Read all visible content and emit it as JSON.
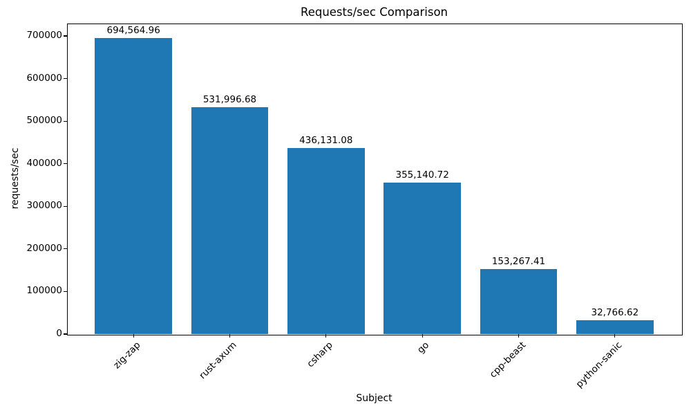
{
  "chart_data": {
    "type": "bar",
    "title": "Requests/sec Comparison",
    "xlabel": "Subject",
    "ylabel": "requests/sec",
    "categories": [
      "zig-zap",
      "rust-axum",
      "csharp",
      "go",
      "cpp-beast",
      "python-sanic"
    ],
    "values": [
      694564.96,
      531996.68,
      436131.08,
      355140.72,
      153267.41,
      32766.62
    ],
    "value_labels": [
      "694,564.96",
      "531,996.68",
      "436,131.08",
      "355,140.72",
      "153,267.41",
      "32,766.62"
    ],
    "yticks": [
      0,
      100000,
      200000,
      300000,
      400000,
      500000,
      600000,
      700000
    ],
    "ytick_labels": [
      "0",
      "100000",
      "200000",
      "300000",
      "400000",
      "500000",
      "600000",
      "700000"
    ],
    "ylim": [
      0,
      729293
    ],
    "bar_color": "#1f77b4",
    "axis_color": "#000000",
    "grid": false,
    "legend_position": "none"
  }
}
